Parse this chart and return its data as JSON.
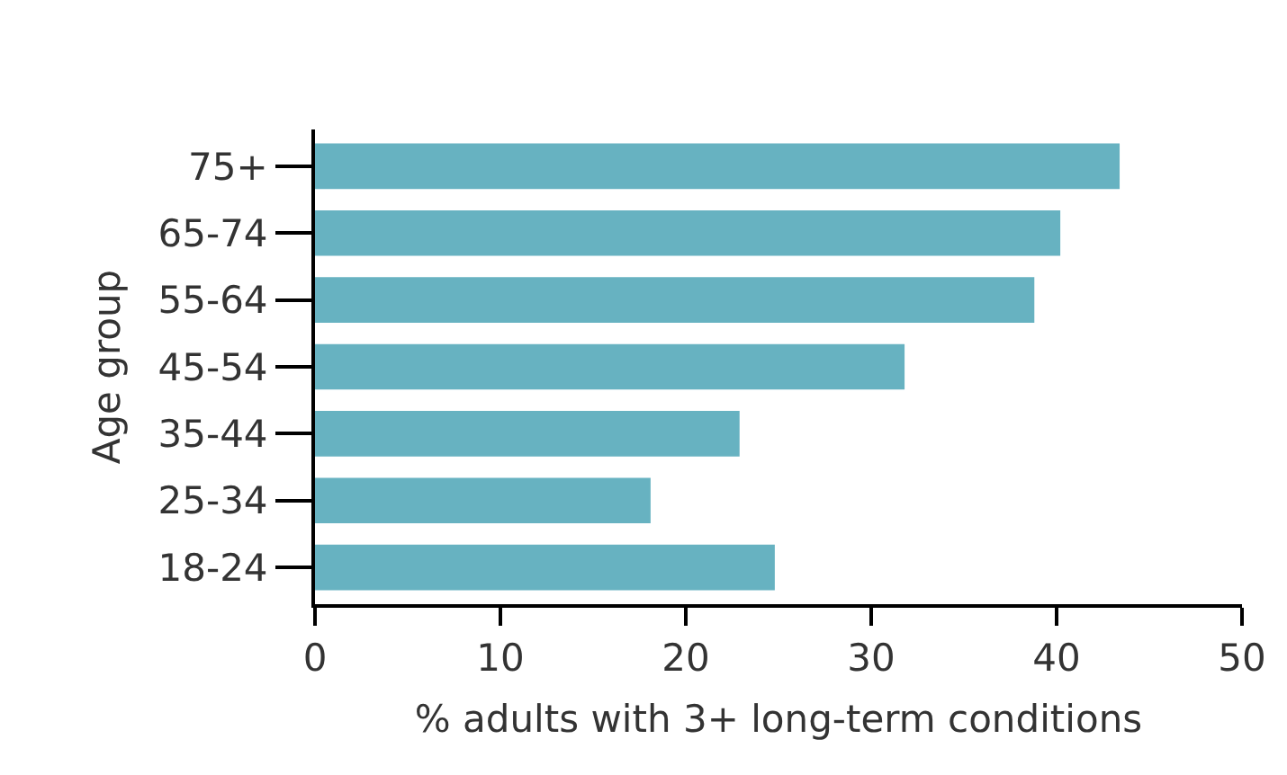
{
  "chart_data": {
    "type": "bar",
    "orientation": "horizontal",
    "xlabel": "% adults with 3+ long-term conditions",
    "ylabel": "Age group",
    "categories": [
      "75+",
      "65-74",
      "55-64",
      "45-54",
      "35-44",
      "25-34",
      "18-24"
    ],
    "values": [
      43.4,
      40.2,
      38.8,
      31.8,
      22.9,
      18.1,
      24.8
    ],
    "color": "#67b2c1",
    "xlim": [
      0,
      50
    ],
    "xticks": [
      0,
      10,
      20,
      30,
      40,
      50
    ]
  }
}
